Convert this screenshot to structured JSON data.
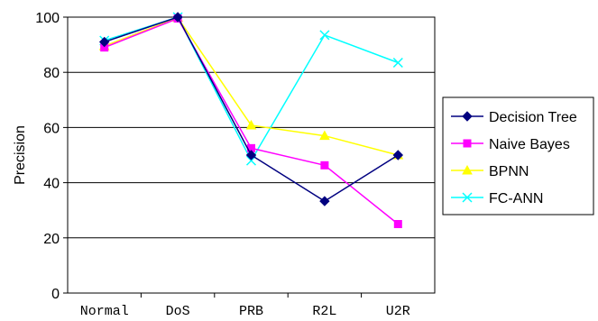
{
  "chart_data": {
    "type": "line",
    "title": "",
    "xlabel": "",
    "ylabel": "Precision",
    "categories": [
      "Normal",
      "DoS",
      "PRB",
      "R2L",
      "U2R"
    ],
    "ylim": [
      0,
      100
    ],
    "yticks": [
      0,
      20,
      40,
      60,
      80,
      100
    ],
    "grid": "horizontal",
    "legend_position": "right",
    "series": [
      {
        "name": "Decision Tree",
        "values": [
          91,
          100,
          50,
          33.3,
          50
        ],
        "color": "#000080",
        "marker": "diamond"
      },
      {
        "name": "Naive Bayes",
        "values": [
          89,
          99.5,
          52.5,
          46.3,
          25
        ],
        "color": "#FF00FF",
        "marker": "square"
      },
      {
        "name": "BPNN",
        "values": [
          89.5,
          99.8,
          60.8,
          57,
          50
        ],
        "color": "#FFFF00",
        "marker": "triangle"
      },
      {
        "name": "FC-ANN",
        "values": [
          91.5,
          100,
          48,
          93.5,
          83.5
        ],
        "color": "#00FFFF",
        "marker": "x"
      }
    ]
  }
}
